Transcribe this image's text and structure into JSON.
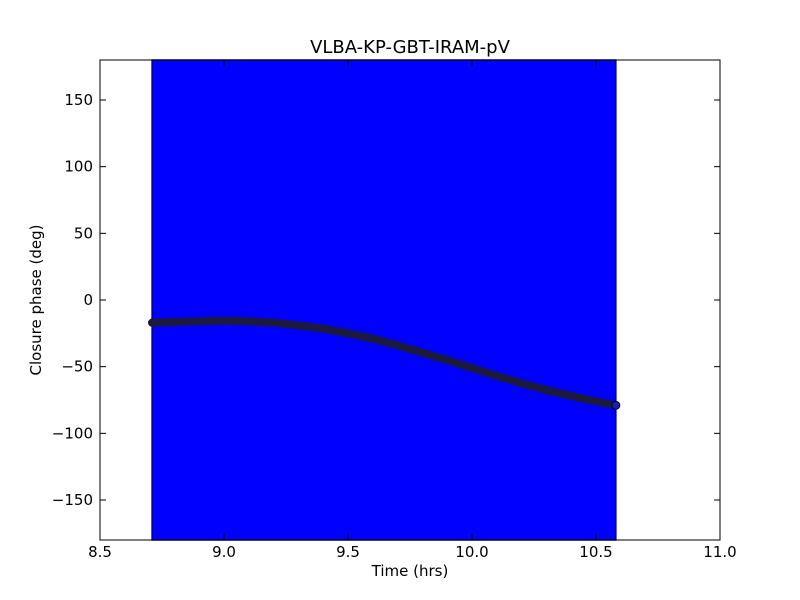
{
  "chart_data": {
    "type": "scatter",
    "title": "VLBA-KP-GBT-IRAM-pV",
    "xlabel": "Time (hrs)",
    "ylabel": "Closure phase (deg)",
    "xlim": [
      8.5,
      11.0
    ],
    "ylim": [
      -180,
      180
    ],
    "xticks": [
      8.5,
      9.0,
      9.5,
      10.0,
      10.5,
      11.0
    ],
    "xtick_labels": [
      "8.5",
      "9.0",
      "9.5",
      "10.0",
      "10.5",
      "11.0"
    ],
    "yticks": [
      150,
      100,
      50,
      0,
      -50,
      -100,
      -150
    ],
    "ytick_labels": [
      "150",
      "100",
      "50",
      "0",
      "−50",
      "−100",
      "−150"
    ],
    "grid": false,
    "band": {
      "x_start": 8.71,
      "x_end": 10.58,
      "y_min": -180,
      "y_max": 180,
      "color": "#0000ff",
      "border_color": "#00008b"
    },
    "series": [
      {
        "color": "#1a1a40",
        "x": [
          8.71,
          8.8,
          8.9,
          9.0,
          9.1,
          9.2,
          9.3,
          9.4,
          9.5,
          9.6,
          9.7,
          9.8,
          9.9,
          10.0,
          10.1,
          10.2,
          10.3,
          10.4,
          10.5,
          10.58
        ],
        "y": [
          -17,
          -16.5,
          -16,
          -15.5,
          -16,
          -17,
          -19,
          -21.5,
          -25,
          -29,
          -34,
          -39.5,
          -45,
          -51,
          -57,
          -62.5,
          -67.5,
          -72,
          -76,
          -79
        ]
      }
    ]
  }
}
